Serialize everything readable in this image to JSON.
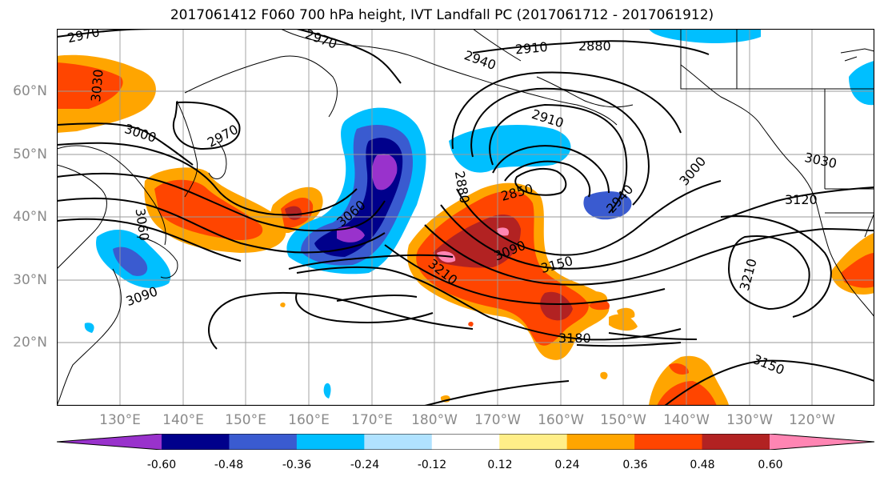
{
  "title": "2017061412 F060 700 hPa height, IVT Landfall PC (2017061712 - 2017061912)",
  "latitude_labels": [
    {
      "text": "60°N",
      "lat": 60
    },
    {
      "text": "50°N",
      "lat": 50
    },
    {
      "text": "40°N",
      "lat": 40
    },
    {
      "text": "30°N",
      "lat": 30
    },
    {
      "text": "20°N",
      "lat": 20
    }
  ],
  "longitude_labels": [
    {
      "text": "130°E",
      "lon": 130
    },
    {
      "text": "140°E",
      "lon": 140
    },
    {
      "text": "150°E",
      "lon": 150
    },
    {
      "text": "160°E",
      "lon": 160
    },
    {
      "text": "170°E",
      "lon": 170
    },
    {
      "text": "180°W",
      "lon": 180
    },
    {
      "text": "170°W",
      "lon": 190
    },
    {
      "text": "160°W",
      "lon": 200
    },
    {
      "text": "150°W",
      "lon": 210
    },
    {
      "text": "140°W",
      "lon": 220
    },
    {
      "text": "130°W",
      "lon": 230
    },
    {
      "text": "120°W",
      "lon": 240
    }
  ],
  "contour_labels": [
    {
      "text": "2970"
    },
    {
      "text": "2970"
    },
    {
      "text": "2970"
    },
    {
      "text": "2910"
    },
    {
      "text": "2880"
    },
    {
      "text": "2940"
    },
    {
      "text": "3030"
    },
    {
      "text": "3000"
    },
    {
      "text": "2910"
    },
    {
      "text": "3000"
    },
    {
      "text": "3030"
    },
    {
      "text": "2880"
    },
    {
      "text": "2850"
    },
    {
      "text": "2940"
    },
    {
      "text": "3120"
    },
    {
      "text": "3060"
    },
    {
      "text": "3090"
    },
    {
      "text": "3060"
    },
    {
      "text": "3090"
    },
    {
      "text": "3150"
    },
    {
      "text": "3210"
    },
    {
      "text": "3210"
    },
    {
      "text": "3180"
    },
    {
      "text": "3150"
    }
  ],
  "colorbar": {
    "colors": [
      "#9932cc",
      "#00008b",
      "#3a5bd0",
      "#00bfff",
      "#b0e2ff",
      "#ffffff",
      "#ffee88",
      "#ffa500",
      "#ff4500",
      "#b22222",
      "#ff85b3"
    ],
    "tick_labels": [
      "-0.60",
      "-0.48",
      "-0.36",
      "-0.24",
      "-0.12",
      "0.12",
      "0.24",
      "0.36",
      "0.48",
      "0.60"
    ]
  },
  "colors": {
    "grid": "#9a9a9a",
    "contour": "#000000",
    "axis_label": "#8a8a8a"
  }
}
